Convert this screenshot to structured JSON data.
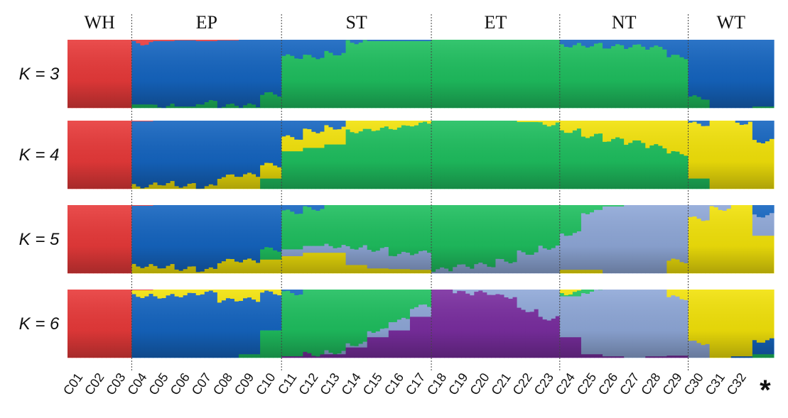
{
  "chart_data": {
    "type": "stacked-bar-admixture",
    "title": "",
    "groups": [
      {
        "name": "WH",
        "samples": [
          "C01",
          "C02",
          "C03"
        ]
      },
      {
        "name": "EP",
        "samples": [
          "C04",
          "C05",
          "C06",
          "C07",
          "C08",
          "C09",
          "C10"
        ]
      },
      {
        "name": "ST",
        "samples": [
          "C11",
          "C12",
          "C13",
          "C14",
          "C15",
          "C16",
          "C17"
        ]
      },
      {
        "name": "ET",
        "samples": [
          "C18",
          "C19",
          "C20",
          "C21",
          "C22",
          "C23"
        ]
      },
      {
        "name": "NT",
        "samples": [
          "C24",
          "C25",
          "C26",
          "C27",
          "C28",
          "C29"
        ]
      },
      {
        "name": "WT",
        "samples": [
          "C30",
          "C31",
          "C32",
          "*"
        ]
      }
    ],
    "marker_label": "*",
    "cluster_colors": {
      "red": "#e83a3a",
      "blue": "#1565c0",
      "green": "#1fbf5f",
      "yellow": "#f2e20a",
      "lightblue": "#8fa8d8",
      "purple": "#7a2ea0"
    },
    "panels": [
      {
        "label": "K = 3",
        "k": 3,
        "order": [
          "red",
          "blue",
          "green"
        ],
        "samples": {
          "C01": [
            1,
            0,
            0
          ],
          "C02": [
            1,
            0,
            0
          ],
          "C03": [
            1,
            0,
            0
          ],
          "C04": [
            0.05,
            0.9,
            0.05
          ],
          "C05": [
            0.02,
            0.95,
            0.03
          ],
          "C06": [
            0.01,
            0.97,
            0.02
          ],
          "C07": [
            0.02,
            0.9,
            0.08
          ],
          "C08": [
            0.01,
            0.96,
            0.03
          ],
          "C09": [
            0,
            0.97,
            0.03
          ],
          "C10": [
            0,
            0.8,
            0.2
          ],
          "C11": [
            0,
            0.25,
            0.75
          ],
          "C12": [
            0,
            0.25,
            0.75
          ],
          "C13": [
            0,
            0.2,
            0.8
          ],
          "C14": [
            0,
            0.03,
            0.97
          ],
          "C15": [
            0,
            0.02,
            0.98
          ],
          "C16": [
            0,
            0.02,
            0.98
          ],
          "C17": [
            0,
            0.02,
            0.98
          ],
          "C18": [
            0,
            0,
            1
          ],
          "C19": [
            0,
            0,
            1
          ],
          "C20": [
            0,
            0,
            1
          ],
          "C21": [
            0,
            0,
            1
          ],
          "C22": [
            0,
            0,
            1
          ],
          "C23": [
            0,
            0,
            1
          ],
          "C24": [
            0,
            0.08,
            0.92
          ],
          "C25": [
            0,
            0.08,
            0.92
          ],
          "C26": [
            0,
            0.1,
            0.9
          ],
          "C27": [
            0,
            0.1,
            0.9
          ],
          "C28": [
            0,
            0.12,
            0.88
          ],
          "C29": [
            0,
            0.25,
            0.75
          ],
          "C30": [
            0,
            0.85,
            0.15
          ],
          "C31": [
            0,
            1,
            0
          ],
          "C32": [
            0,
            1,
            0
          ],
          "*": [
            0,
            0.98,
            0.02
          ]
        }
      },
      {
        "label": "K = 4",
        "k": 4,
        "order": [
          "red",
          "blue",
          "yellow",
          "green"
        ],
        "samples": {
          "C01": [
            1,
            0,
            0,
            0
          ],
          "C02": [
            1,
            0,
            0,
            0
          ],
          "C03": [
            1,
            0,
            0,
            0
          ],
          "C04": [
            0.01,
            0.95,
            0.04,
            0
          ],
          "C05": [
            0,
            0.92,
            0.08,
            0
          ],
          "C06": [
            0,
            0.95,
            0.05,
            0
          ],
          "C07": [
            0,
            0.97,
            0.03,
            0
          ],
          "C08": [
            0,
            0.82,
            0.18,
            0
          ],
          "C09": [
            0,
            0.8,
            0.2,
            0
          ],
          "C10": [
            0,
            0.65,
            0.2,
            0.15
          ],
          "C11": [
            0,
            0.25,
            0.2,
            0.55
          ],
          "C12": [
            0,
            0.15,
            0.25,
            0.6
          ],
          "C13": [
            0,
            0.1,
            0.25,
            0.65
          ],
          "C14": [
            0,
            0,
            0.15,
            0.85
          ],
          "C15": [
            0,
            0,
            0.12,
            0.88
          ],
          "C16": [
            0,
            0,
            0.1,
            0.9
          ],
          "C17": [
            0,
            0,
            0.05,
            0.95
          ],
          "C18": [
            0,
            0,
            0,
            1
          ],
          "C19": [
            0,
            0,
            0,
            1
          ],
          "C20": [
            0,
            0,
            0,
            1
          ],
          "C21": [
            0,
            0,
            0,
            1
          ],
          "C22": [
            0,
            0,
            0.02,
            0.98
          ],
          "C23": [
            0,
            0,
            0.05,
            0.95
          ],
          "C24": [
            0,
            0,
            0.15,
            0.85
          ],
          "C25": [
            0,
            0,
            0.22,
            0.78
          ],
          "C26": [
            0,
            0,
            0.28,
            0.72
          ],
          "C27": [
            0,
            0,
            0.32,
            0.68
          ],
          "C28": [
            0,
            0,
            0.38,
            0.62
          ],
          "C29": [
            0,
            0,
            0.48,
            0.52
          ],
          "C30": [
            0,
            0.05,
            0.8,
            0.15
          ],
          "C31": [
            0,
            0,
            1,
            0
          ],
          "C32": [
            0,
            0.03,
            0.97,
            0
          ],
          "*": [
            0,
            0.3,
            0.7,
            0
          ]
        }
      },
      {
        "label": "K = 5",
        "k": 5,
        "order": [
          "red",
          "blue",
          "green",
          "lightblue",
          "yellow"
        ],
        "samples": {
          "C01": [
            1,
            0,
            0,
            0,
            0
          ],
          "C02": [
            1,
            0,
            0,
            0,
            0
          ],
          "C03": [
            1,
            0,
            0,
            0,
            0
          ],
          "C04": [
            0.01,
            0.88,
            0,
            0,
            0.11
          ],
          "C05": [
            0,
            0.9,
            0,
            0,
            0.1
          ],
          "C06": [
            0,
            0.93,
            0,
            0,
            0.07
          ],
          "C07": [
            0,
            0.95,
            0,
            0,
            0.05
          ],
          "C08": [
            0,
            0.82,
            0,
            0,
            0.18
          ],
          "C09": [
            0,
            0.82,
            0,
            0,
            0.18
          ],
          "C10": [
            0,
            0.65,
            0.15,
            0,
            0.2
          ],
          "C11": [
            0,
            0.1,
            0.55,
            0.1,
            0.25
          ],
          "C12": [
            0,
            0.05,
            0.55,
            0.1,
            0.3
          ],
          "C13": [
            0,
            0,
            0.6,
            0.1,
            0.3
          ],
          "C14": [
            0,
            0,
            0.62,
            0.26,
            0.12
          ],
          "C15": [
            0,
            0,
            0.65,
            0.28,
            0.07
          ],
          "C16": [
            0,
            0,
            0.72,
            0.22,
            0.06
          ],
          "C17": [
            0,
            0,
            0.7,
            0.25,
            0.05
          ],
          "C18": [
            0,
            0,
            0.95,
            0.05,
            0
          ],
          "C19": [
            0,
            0,
            0.9,
            0.1,
            0
          ],
          "C20": [
            0,
            0,
            0.88,
            0.12,
            0
          ],
          "C21": [
            0,
            0,
            0.82,
            0.18,
            0
          ],
          "C22": [
            0,
            0,
            0.7,
            0.3,
            0
          ],
          "C23": [
            0,
            0,
            0.62,
            0.38,
            0
          ],
          "C24": [
            0,
            0,
            0.42,
            0.53,
            0.05
          ],
          "C25": [
            0,
            0,
            0.1,
            0.85,
            0.05
          ],
          "C26": [
            0,
            0,
            0.02,
            0.98,
            0
          ],
          "C27": [
            0,
            0,
            0,
            1,
            0
          ],
          "C28": [
            0,
            0,
            0,
            1,
            0
          ],
          "C29": [
            0,
            0,
            0,
            0.82,
            0.18
          ],
          "C30": [
            0,
            0,
            0,
            0.2,
            0.8
          ],
          "C31": [
            0,
            0,
            0,
            0.05,
            0.95
          ],
          "C32": [
            0,
            0,
            0,
            0,
            1
          ],
          "*": [
            0,
            0.15,
            0,
            0.3,
            0.55
          ]
        }
      },
      {
        "label": "K = 6",
        "k": 6,
        "order": [
          "red",
          "yellow",
          "blue",
          "green",
          "lightblue",
          "purple"
        ],
        "samples": {
          "C01": [
            1,
            0,
            0,
            0,
            0,
            0
          ],
          "C02": [
            1,
            0,
            0,
            0,
            0,
            0
          ],
          "C03": [
            1,
            0,
            0,
            0,
            0,
            0
          ],
          "C04": [
            0.01,
            0.08,
            0.91,
            0,
            0,
            0
          ],
          "C05": [
            0,
            0.1,
            0.9,
            0,
            0,
            0
          ],
          "C06": [
            0,
            0.08,
            0.92,
            0,
            0,
            0
          ],
          "C07": [
            0,
            0.05,
            0.95,
            0,
            0,
            0
          ],
          "C08": [
            0,
            0.16,
            0.84,
            0,
            0,
            0
          ],
          "C09": [
            0,
            0.15,
            0.8,
            0.05,
            0,
            0
          ],
          "C10": [
            0,
            0.05,
            0.55,
            0.4,
            0,
            0
          ],
          "C11": [
            0,
            0,
            0.05,
            0.93,
            0,
            0.02
          ],
          "C12": [
            0,
            0,
            0,
            0.95,
            0,
            0.05
          ],
          "C13": [
            0,
            0,
            0,
            0.92,
            0.03,
            0.05
          ],
          "C14": [
            0,
            0,
            0,
            0.8,
            0.05,
            0.15
          ],
          "C15": [
            0,
            0,
            0,
            0.6,
            0.1,
            0.3
          ],
          "C16": [
            0,
            0,
            0,
            0.45,
            0.15,
            0.4
          ],
          "C17": [
            0,
            0,
            0,
            0.25,
            0.15,
            0.6
          ],
          "C18": [
            0,
            0,
            0,
            0,
            0,
            1
          ],
          "C19": [
            0,
            0,
            0,
            0,
            0.05,
            0.95
          ],
          "C20": [
            0,
            0,
            0,
            0,
            0.05,
            0.95
          ],
          "C21": [
            0,
            0,
            0,
            0,
            0.1,
            0.9
          ],
          "C22": [
            0,
            0,
            0,
            0,
            0.3,
            0.7
          ],
          "C23": [
            0,
            0,
            0,
            0,
            0.42,
            0.58
          ],
          "C24": [
            0,
            0.05,
            0,
            0.05,
            0.6,
            0.3
          ],
          "C25": [
            0,
            0,
            0,
            0.03,
            0.92,
            0.05
          ],
          "C26": [
            0,
            0,
            0,
            0,
            0.98,
            0.02
          ],
          "C27": [
            0,
            0,
            0,
            0,
            1,
            0
          ],
          "C28": [
            0,
            0,
            0,
            0,
            0.98,
            0.02
          ],
          "C29": [
            0,
            0.12,
            0,
            0,
            0.85,
            0.03
          ],
          "C30": [
            0,
            0.78,
            0,
            0,
            0.22,
            0
          ],
          "C31": [
            0,
            1,
            0,
            0,
            0,
            0
          ],
          "C32": [
            0,
            0.98,
            0.02,
            0,
            0,
            0
          ],
          "*": [
            0,
            0.75,
            0.2,
            0.05,
            0,
            0
          ]
        }
      }
    ],
    "xlabel": "",
    "ylabel": ""
  }
}
